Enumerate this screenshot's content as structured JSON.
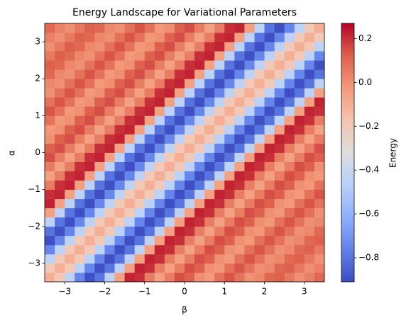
{
  "chart_data": {
    "type": "heatmap",
    "title": "Energy Landscape for Variational Parameters",
    "x_label": "β",
    "y_label": "α",
    "colorbar_label": "Energy",
    "colormap": "coolwarm",
    "clim": [
      -0.91,
      0.27
    ],
    "xlim": [
      -3.5,
      3.5
    ],
    "ylim": [
      -3.5,
      3.5
    ],
    "xticks": [
      {
        "value": -3,
        "label": "−3"
      },
      {
        "value": -2,
        "label": "−2"
      },
      {
        "value": -1,
        "label": "−1"
      },
      0,
      1,
      2,
      3
    ],
    "yticks": [
      {
        "value": -3,
        "label": "−3"
      },
      {
        "value": -2,
        "label": "−2"
      },
      {
        "value": -1,
        "label": "−1"
      },
      0,
      1,
      2,
      3
    ],
    "cticks": [
      {
        "value": -0.8,
        "label": "−0.8"
      },
      {
        "value": -0.6,
        "label": "−0.6"
      },
      {
        "value": -0.4,
        "label": "−0.4"
      },
      {
        "value": -0.2,
        "label": "−0.2"
      },
      {
        "value": 0,
        "label": "0.0"
      },
      {
        "value": 0.2,
        "label": "0.2"
      }
    ],
    "z": [
      [
        -0.1,
        -0.2,
        -0.45,
        -0.75,
        -0.9,
        -0.8,
        -0.45,
        -0.05,
        0.22,
        0.2,
        0.05,
        -0.05,
        0.05,
        0.15,
        0.12,
        0,
        -0.02,
        0.08,
        0.14,
        0.08,
        0,
        0.02,
        0.1,
        0.12,
        0.06,
        0,
        0.04,
        0.1
      ],
      [
        -0.2,
        -0.1,
        -0.2,
        -0.45,
        -0.75,
        -0.9,
        -0.8,
        -0.45,
        -0.05,
        0.22,
        0.2,
        0.05,
        -0.05,
        0.05,
        0.15,
        0.12,
        0,
        -0.02,
        0.08,
        0.14,
        0.08,
        0,
        0.02,
        0.1,
        0.12,
        0.06,
        0,
        0.04
      ],
      [
        -0.45,
        -0.2,
        -0.1,
        -0.2,
        -0.45,
        -0.75,
        -0.9,
        -0.8,
        -0.45,
        -0.05,
        0.22,
        0.2,
        0.05,
        -0.05,
        0.05,
        0.15,
        0.12,
        0,
        -0.02,
        0.08,
        0.14,
        0.08,
        0,
        0.02,
        0.1,
        0.12,
        0.06,
        0
      ],
      [
        -0.75,
        -0.45,
        -0.2,
        -0.1,
        -0.2,
        -0.45,
        -0.75,
        -0.9,
        -0.8,
        -0.45,
        -0.05,
        0.22,
        0.2,
        0.05,
        -0.05,
        0.05,
        0.15,
        0.12,
        0,
        -0.02,
        0.08,
        0.14,
        0.08,
        0,
        0.02,
        0.1,
        0.12,
        0.06
      ],
      [
        -0.9,
        -0.75,
        -0.45,
        -0.2,
        -0.1,
        -0.2,
        -0.45,
        -0.75,
        -0.9,
        -0.8,
        -0.45,
        -0.05,
        0.22,
        0.2,
        0.05,
        -0.05,
        0.05,
        0.15,
        0.12,
        0,
        -0.02,
        0.08,
        0.14,
        0.08,
        0,
        0.02,
        0.1,
        0.12
      ],
      [
        -0.8,
        -0.9,
        -0.75,
        -0.45,
        -0.2,
        -0.1,
        -0.2,
        -0.45,
        -0.75,
        -0.9,
        -0.8,
        -0.45,
        -0.05,
        0.22,
        0.2,
        0.05,
        -0.05,
        0.05,
        0.15,
        0.12,
        0,
        -0.02,
        0.08,
        0.14,
        0.08,
        0,
        0.02,
        0.1
      ],
      [
        -0.45,
        -0.8,
        -0.9,
        -0.75,
        -0.45,
        -0.2,
        -0.1,
        -0.2,
        -0.45,
        -0.75,
        -0.9,
        -0.8,
        -0.45,
        -0.05,
        0.22,
        0.2,
        0.05,
        -0.05,
        0.05,
        0.15,
        0.12,
        0,
        -0.02,
        0.08,
        0.14,
        0.08,
        0,
        0.02
      ],
      [
        -0.05,
        -0.45,
        -0.8,
        -0.9,
        -0.75,
        -0.45,
        -0.2,
        -0.1,
        -0.2,
        -0.45,
        -0.75,
        -0.9,
        -0.8,
        -0.45,
        -0.05,
        0.22,
        0.2,
        0.05,
        -0.05,
        0.05,
        0.15,
        0.12,
        0,
        -0.02,
        0.08,
        0.14,
        0.08,
        0
      ],
      [
        0.22,
        -0.05,
        -0.45,
        -0.8,
        -0.9,
        -0.75,
        -0.45,
        -0.2,
        -0.1,
        -0.2,
        -0.45,
        -0.75,
        -0.9,
        -0.8,
        -0.45,
        -0.05,
        0.22,
        0.2,
        0.05,
        -0.05,
        0.05,
        0.15,
        0.12,
        0,
        -0.02,
        0.08,
        0.14,
        0.08
      ],
      [
        0.2,
        0.22,
        -0.05,
        -0.45,
        -0.8,
        -0.9,
        -0.75,
        -0.45,
        -0.2,
        -0.1,
        -0.2,
        -0.45,
        -0.75,
        -0.9,
        -0.8,
        -0.45,
        -0.05,
        0.22,
        0.2,
        0.05,
        -0.05,
        0.05,
        0.15,
        0.12,
        0,
        -0.02,
        0.08,
        0.14
      ],
      [
        0.05,
        0.2,
        0.22,
        -0.05,
        -0.45,
        -0.8,
        -0.9,
        -0.75,
        -0.45,
        -0.2,
        -0.1,
        -0.2,
        -0.45,
        -0.75,
        -0.9,
        -0.8,
        -0.45,
        -0.05,
        0.22,
        0.2,
        0.05,
        -0.05,
        0.05,
        0.15,
        0.12,
        0,
        -0.02,
        0.08
      ],
      [
        -0.05,
        0.05,
        0.2,
        0.22,
        -0.05,
        -0.45,
        -0.8,
        -0.9,
        -0.75,
        -0.45,
        -0.2,
        -0.1,
        -0.2,
        -0.45,
        -0.75,
        -0.9,
        -0.8,
        -0.45,
        -0.05,
        0.22,
        0.2,
        0.05,
        -0.05,
        0.05,
        0.15,
        0.12,
        0,
        -0.02
      ],
      [
        0.05,
        -0.05,
        0.05,
        0.2,
        0.22,
        -0.05,
        -0.45,
        -0.8,
        -0.9,
        -0.75,
        -0.45,
        -0.2,
        -0.1,
        -0.2,
        -0.45,
        -0.75,
        -0.9,
        -0.8,
        -0.45,
        -0.05,
        0.22,
        0.2,
        0.05,
        -0.05,
        0.05,
        0.15,
        0.12,
        0
      ],
      [
        0.15,
        0.05,
        -0.05,
        0.05,
        0.2,
        0.22,
        -0.05,
        -0.45,
        -0.8,
        -0.9,
        -0.75,
        -0.45,
        -0.2,
        -0.1,
        -0.2,
        -0.45,
        -0.75,
        -0.9,
        -0.8,
        -0.45,
        -0.05,
        0.22,
        0.2,
        0.05,
        -0.05,
        0.05,
        0.15,
        0.12
      ],
      [
        0.12,
        0.15,
        0.05,
        -0.05,
        0.05,
        0.2,
        0.22,
        -0.05,
        -0.45,
        -0.8,
        -0.9,
        -0.75,
        -0.45,
        -0.2,
        -0.1,
        -0.2,
        -0.45,
        -0.75,
        -0.9,
        -0.8,
        -0.45,
        -0.05,
        0.22,
        0.2,
        0.05,
        -0.05,
        0.05,
        0.15
      ],
      [
        0,
        0.12,
        0.15,
        0.05,
        -0.05,
        0.05,
        0.2,
        0.22,
        -0.05,
        -0.45,
        -0.8,
        -0.9,
        -0.75,
        -0.45,
        -0.2,
        -0.1,
        -0.2,
        -0.45,
        -0.75,
        -0.9,
        -0.8,
        -0.45,
        -0.05,
        0.22,
        0.2,
        0.05,
        -0.05,
        0.05
      ],
      [
        -0.02,
        0,
        0.12,
        0.15,
        0.05,
        -0.05,
        0.05,
        0.2,
        0.22,
        -0.05,
        -0.45,
        -0.8,
        -0.9,
        -0.75,
        -0.45,
        -0.2,
        -0.1,
        -0.2,
        -0.45,
        -0.75,
        -0.9,
        -0.8,
        -0.45,
        -0.05,
        0.22,
        0.2,
        0.05,
        -0.05
      ],
      [
        0.08,
        -0.02,
        0,
        0.12,
        0.15,
        0.05,
        -0.05,
        0.05,
        0.2,
        0.22,
        -0.05,
        -0.45,
        -0.8,
        -0.9,
        -0.75,
        -0.45,
        -0.2,
        -0.1,
        -0.2,
        -0.45,
        -0.75,
        -0.9,
        -0.8,
        -0.45,
        -0.05,
        0.22,
        0.2,
        0.05
      ],
      [
        0.14,
        0.08,
        -0.02,
        0,
        0.12,
        0.15,
        0.05,
        -0.05,
        0.05,
        0.2,
        0.22,
        -0.05,
        -0.45,
        -0.8,
        -0.9,
        -0.75,
        -0.45,
        -0.2,
        -0.1,
        -0.2,
        -0.45,
        -0.75,
        -0.9,
        -0.8,
        -0.45,
        -0.05,
        0.22,
        0.2
      ],
      [
        0.08,
        0.14,
        0.08,
        -0.02,
        0,
        0.12,
        0.15,
        0.05,
        -0.05,
        0.05,
        0.2,
        0.22,
        -0.05,
        -0.45,
        -0.8,
        -0.9,
        -0.75,
        -0.45,
        -0.2,
        -0.1,
        -0.2,
        -0.45,
        -0.75,
        -0.9,
        -0.8,
        -0.45,
        -0.05,
        0.22
      ],
      [
        0,
        0.08,
        0.14,
        0.08,
        -0.02,
        0,
        0.12,
        0.15,
        0.05,
        -0.05,
        0.05,
        0.2,
        0.22,
        -0.05,
        -0.45,
        -0.8,
        -0.9,
        -0.75,
        -0.45,
        -0.2,
        -0.1,
        -0.2,
        -0.45,
        -0.75,
        -0.9,
        -0.8,
        -0.45,
        -0.05
      ],
      [
        0.02,
        0,
        0.08,
        0.14,
        0.08,
        -0.02,
        0,
        0.12,
        0.15,
        0.05,
        -0.05,
        0.05,
        0.2,
        0.22,
        -0.05,
        -0.45,
        -0.8,
        -0.9,
        -0.75,
        -0.45,
        -0.2,
        -0.1,
        -0.2,
        -0.45,
        -0.75,
        -0.9,
        -0.8,
        -0.45
      ],
      [
        0.1,
        0.02,
        0,
        0.08,
        0.14,
        0.08,
        -0.02,
        0,
        0.12,
        0.15,
        0.05,
        -0.05,
        0.05,
        0.2,
        0.22,
        -0.05,
        -0.45,
        -0.8,
        -0.9,
        -0.75,
        -0.45,
        -0.2,
        -0.1,
        -0.2,
        -0.45,
        -0.75,
        -0.9,
        -0.8
      ],
      [
        0.12,
        0.1,
        0.02,
        0,
        0.08,
        0.14,
        0.08,
        -0.02,
        0,
        0.12,
        0.15,
        0.05,
        -0.05,
        0.05,
        0.2,
        0.22,
        -0.05,
        -0.45,
        -0.8,
        -0.9,
        -0.75,
        -0.45,
        -0.2,
        -0.1,
        -0.2,
        -0.45,
        -0.75,
        -0.9
      ],
      [
        0.06,
        0.12,
        0.1,
        0.02,
        0,
        0.08,
        0.14,
        0.08,
        -0.02,
        0,
        0.12,
        0.15,
        0.05,
        -0.05,
        0.05,
        0.2,
        0.22,
        -0.05,
        -0.45,
        -0.8,
        -0.9,
        -0.75,
        -0.45,
        -0.2,
        -0.1,
        -0.2,
        -0.45,
        -0.75
      ],
      [
        0,
        0.06,
        0.12,
        0.1,
        0.02,
        0,
        0.08,
        0.14,
        0.08,
        -0.02,
        0,
        0.12,
        0.15,
        0.05,
        -0.05,
        0.05,
        0.2,
        0.22,
        -0.05,
        -0.45,
        -0.8,
        -0.9,
        -0.75,
        -0.45,
        -0.2,
        -0.1,
        -0.2,
        -0.45
      ],
      [
        0.04,
        0,
        0.06,
        0.12,
        0.1,
        0.02,
        0,
        0.08,
        0.14,
        0.08,
        -0.02,
        0,
        0.12,
        0.15,
        0.05,
        -0.05,
        0.05,
        0.2,
        0.22,
        -0.05,
        -0.45,
        -0.8,
        -0.9,
        -0.75,
        -0.45,
        -0.2,
        -0.1,
        -0.2
      ],
      [
        0.1,
        0.04,
        0,
        0.06,
        0.12,
        0.1,
        0.02,
        0,
        0.08,
        0.14,
        0.08,
        -0.02,
        0,
        0.12,
        0.15,
        0.05,
        -0.05,
        0.05,
        0.2,
        0.22,
        -0.05,
        -0.45,
        -0.8,
        -0.9,
        -0.75,
        -0.45,
        -0.2,
        -0.1
      ]
    ]
  }
}
